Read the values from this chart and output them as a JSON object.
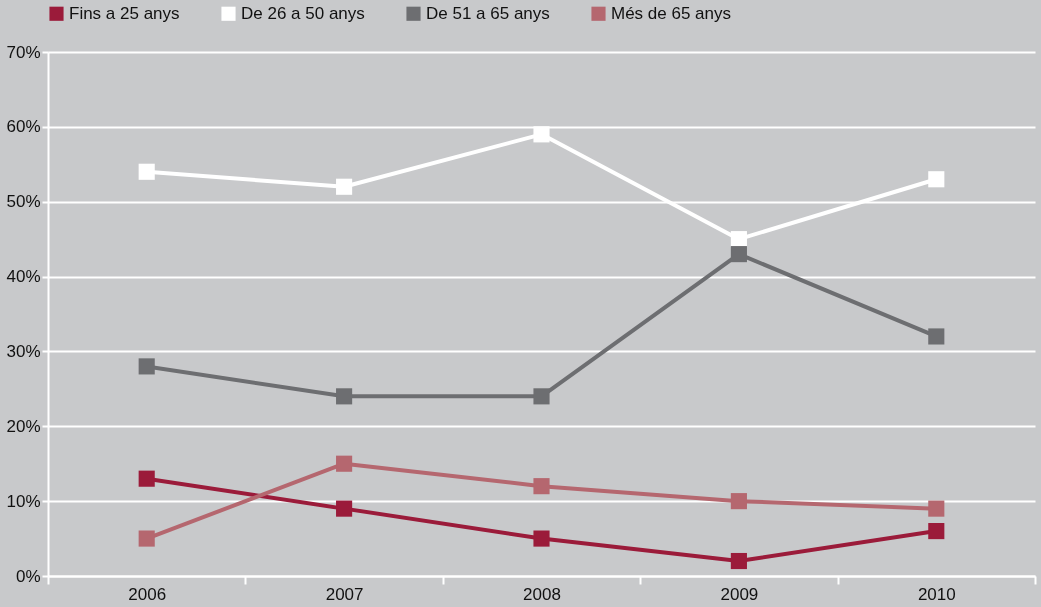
{
  "chart_data": {
    "type": "line",
    "categories": [
      "2006",
      "2007",
      "2008",
      "2009",
      "2010"
    ],
    "series": [
      {
        "name": "Fins a 25 anys",
        "color": "#9b1b3a",
        "values": [
          13,
          9,
          5,
          2,
          6
        ]
      },
      {
        "name": "De 26 a 50 anys",
        "color": "#ffffff",
        "values": [
          54,
          52,
          59,
          45,
          53
        ]
      },
      {
        "name": "De 51 a 65 anys",
        "color": "#6d6e71",
        "values": [
          28,
          24,
          24,
          43,
          32
        ]
      },
      {
        "name": "Més de 65 anys",
        "color": "#b5676f",
        "values": [
          5,
          15,
          12,
          10,
          9
        ]
      }
    ],
    "ylim": [
      0,
      70
    ],
    "yticks": [
      {
        "value": 0,
        "label": "0%"
      },
      {
        "value": 10,
        "label": "10%"
      },
      {
        "value": 20,
        "label": "20%"
      },
      {
        "value": 30,
        "label": "30%"
      },
      {
        "value": 40,
        "label": "40%"
      },
      {
        "value": 50,
        "label": "50%"
      },
      {
        "value": 60,
        "label": "60%"
      },
      {
        "value": 70,
        "label": "70%"
      }
    ],
    "grid": "y",
    "legend": "top left",
    "marker": "square",
    "line_style": "solid"
  }
}
